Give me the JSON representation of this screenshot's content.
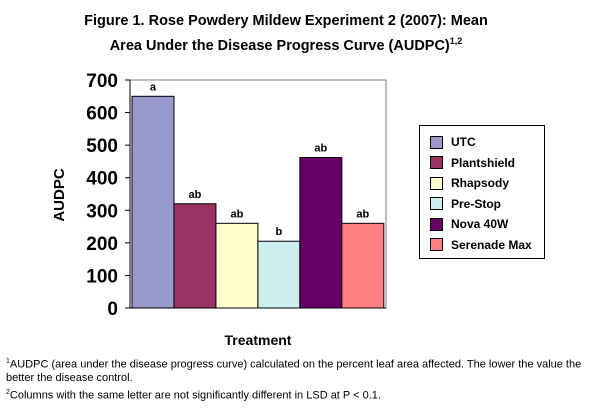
{
  "chart_data": {
    "type": "bar",
    "title": "Figure 1. Rose Powdery Mildew Experiment 2 (2007): Mean Area Under the Disease Progress Curve (AUDPC)",
    "title_line1": "Figure 1. Rose Powdery Mildew Experiment 2 (2007): Mean",
    "title_line2": "Area Under the Disease Progress Curve (AUDPC)",
    "title_sup": "1,2",
    "xlabel": "Treatment",
    "ylabel": "AUDPC",
    "ylim": [
      0,
      700
    ],
    "yticks": [
      "0",
      "100",
      "200",
      "300",
      "400",
      "500",
      "600",
      "700"
    ],
    "grid": false,
    "legend_position": "right",
    "series": [
      {
        "name": "UTC",
        "value": 650,
        "label": "a",
        "color": "#9999cc"
      },
      {
        "name": "Plantshield",
        "value": 320,
        "label": "ab",
        "color": "#993366"
      },
      {
        "name": "Rhapsody",
        "value": 260,
        "label": "ab",
        "color": "#ffffcc"
      },
      {
        "name": "Pre-Stop",
        "value": 205,
        "label": "b",
        "color": "#cceeee"
      },
      {
        "name": "Nova 40W",
        "value": 462,
        "label": "ab",
        "color": "#660066"
      },
      {
        "name": "Serenade Max",
        "value": 260,
        "label": "ab",
        "color": "#ff8080"
      }
    ]
  },
  "footnotes": [
    {
      "sup": "1",
      "text": "AUDPC (area under the disease progress curve) calculated on the percent leaf area affected. The lower the value the better the disease control."
    },
    {
      "sup": "2",
      "text": "Columns with the same letter are not significantly different in LSD at P < 0.1."
    }
  ]
}
